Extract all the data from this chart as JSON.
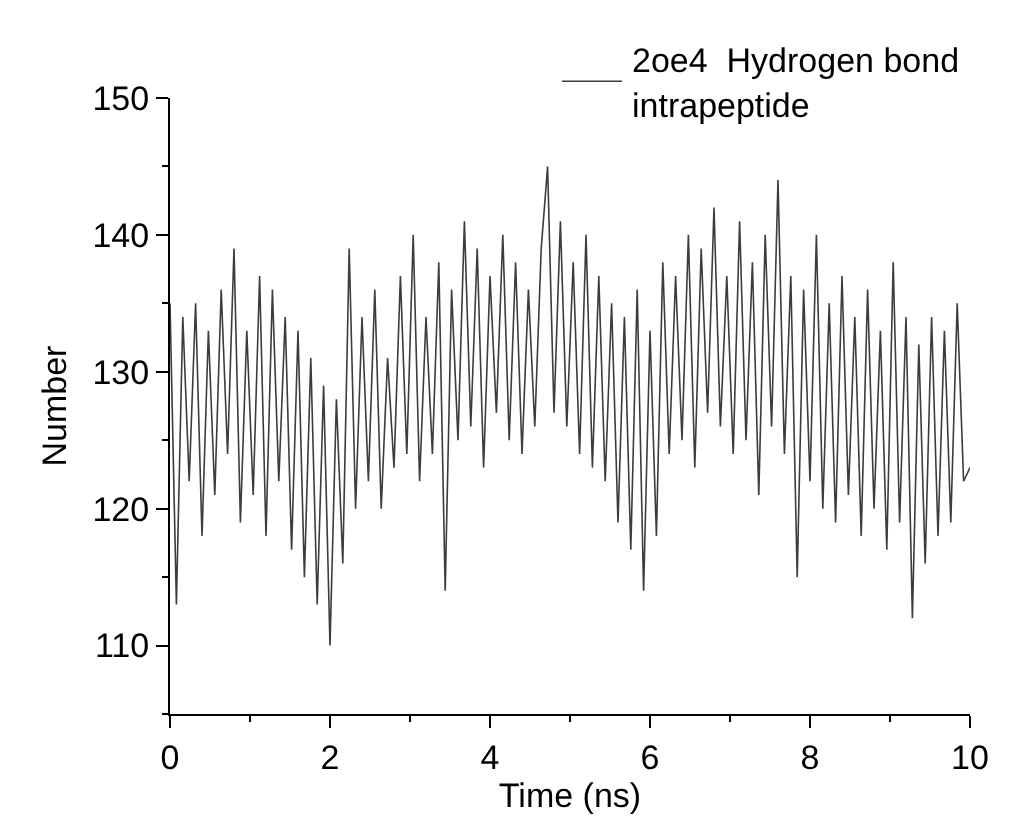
{
  "chart_data": {
    "type": "line",
    "xlabel": "Time (ns)",
    "ylabel": "Number",
    "x": [
      0,
      0.08,
      0.16,
      0.24,
      0.32,
      0.4,
      0.48,
      0.56,
      0.64,
      0.72,
      0.8,
      0.88,
      0.96,
      1.04,
      1.12,
      1.2,
      1.28,
      1.36,
      1.44,
      1.52,
      1.6,
      1.68,
      1.76,
      1.84,
      1.92,
      2,
      2.08,
      2.16,
      2.24,
      2.32,
      2.4,
      2.48,
      2.56,
      2.64,
      2.72,
      2.8,
      2.88,
      2.96,
      3.04,
      3.12,
      3.2,
      3.28,
      3.36,
      3.44,
      3.52,
      3.6,
      3.68,
      3.76,
      3.84,
      3.92,
      4,
      4.08,
      4.16,
      4.24,
      4.32,
      4.4,
      4.48,
      4.56,
      4.64,
      4.72,
      4.8,
      4.88,
      4.96,
      5.04,
      5.12,
      5.2,
      5.28,
      5.36,
      5.44,
      5.52,
      5.6,
      5.68,
      5.76,
      5.84,
      5.92,
      6,
      6.08,
      6.16,
      6.24,
      6.32,
      6.4,
      6.48,
      6.56,
      6.64,
      6.72,
      6.8,
      6.88,
      6.96,
      7.04,
      7.12,
      7.2,
      7.28,
      7.36,
      7.44,
      7.52,
      7.6,
      7.68,
      7.76,
      7.84,
      7.92,
      8,
      8.08,
      8.16,
      8.24,
      8.32,
      8.4,
      8.48,
      8.56,
      8.64,
      8.72,
      8.8,
      8.88,
      8.96,
      9.04,
      9.12,
      9.2,
      9.28,
      9.36,
      9.44,
      9.52,
      9.6,
      9.68,
      9.76,
      9.84,
      9.92,
      10
    ],
    "series": [
      {
        "name": "2oe4  Hydrogen bond\nintrapeptide",
        "color": "#3c3c3c",
        "values": [
          135,
          113,
          134,
          122,
          135,
          118,
          133,
          121,
          136,
          124,
          139,
          119,
          133,
          121,
          137,
          118,
          136,
          122,
          134,
          117,
          133,
          115,
          131,
          113,
          129,
          110,
          128,
          116,
          139,
          120,
          134,
          122,
          136,
          120,
          131,
          123,
          137,
          124,
          140,
          122,
          134,
          124,
          138,
          114,
          136,
          125,
          141,
          126,
          139,
          123,
          137,
          127,
          140,
          125,
          138,
          124,
          136,
          126,
          139,
          145,
          127,
          141,
          126,
          138,
          124,
          140,
          123,
          137,
          122,
          135,
          119,
          134,
          117,
          136,
          114,
          133,
          118,
          138,
          124,
          137,
          125,
          140,
          123,
          139,
          127,
          142,
          126,
          137,
          124,
          141,
          125,
          138,
          121,
          140,
          126,
          144,
          124,
          137,
          115,
          136,
          122,
          140,
          120,
          135,
          119,
          137,
          121,
          134,
          118,
          136,
          120,
          133,
          117,
          138,
          119,
          134,
          112,
          132,
          116,
          134,
          118,
          133,
          119,
          135,
          122,
          123
        ]
      }
    ],
    "xlim": [
      0,
      10
    ],
    "xticks": [
      0,
      2,
      4,
      6,
      8,
      10
    ],
    "ylim": [
      105,
      150
    ],
    "yticks": [
      110,
      120,
      130,
      140,
      150
    ],
    "legend": "top right",
    "marker": "none",
    "line_style": "solid"
  }
}
